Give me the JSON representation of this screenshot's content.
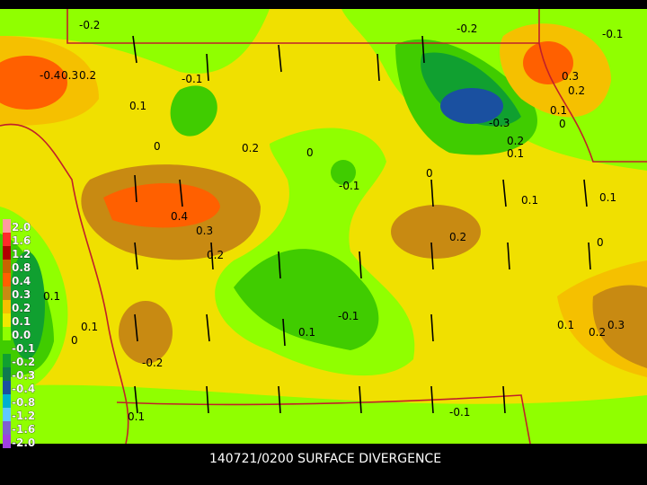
{
  "footer": "140721/0200 SURFACE DIVERGENCE",
  "legend": {
    "labels": [
      "2.0",
      "1.6",
      "1.2",
      "0.8",
      "0.4",
      "0.3",
      "0.2",
      "0.1",
      "0.0",
      "-0.1",
      "-0.2",
      "-0.3",
      "-0.4",
      "-0.8",
      "-1.2",
      "-1.6",
      "-2.0"
    ],
    "colors": [
      "#ff9aa0",
      "#ff2a2a",
      "#b00000",
      "#c86400",
      "#ff6000",
      "#c88a12",
      "#f5c000",
      "#f0e800",
      "#90ff00",
      "#40cc00",
      "#10a030",
      "#0e7a50",
      "#1a50a0",
      "#00b0d0",
      "#60c8ff",
      "#8060d0",
      "#a040e0"
    ]
  },
  "contour_labels": [
    "-0.2",
    "-0.2",
    "-0.1",
    "-0.1",
    "-0.4",
    "0.3",
    "0.2",
    "0.1",
    "0.3",
    "0.2",
    "0.1",
    "0",
    "-0.3",
    "0.2",
    "0.1",
    "0",
    "0.2",
    "0",
    "0",
    "-0.1",
    "0.1",
    "0.1",
    "0.4",
    "0.3",
    "0.2",
    "0",
    "0.2",
    "0.1",
    "0.1",
    "0",
    "-0.1",
    "0.1",
    "-0.2",
    "0.1",
    "0.2",
    "0.3",
    "0.1",
    "-0.1"
  ]
}
